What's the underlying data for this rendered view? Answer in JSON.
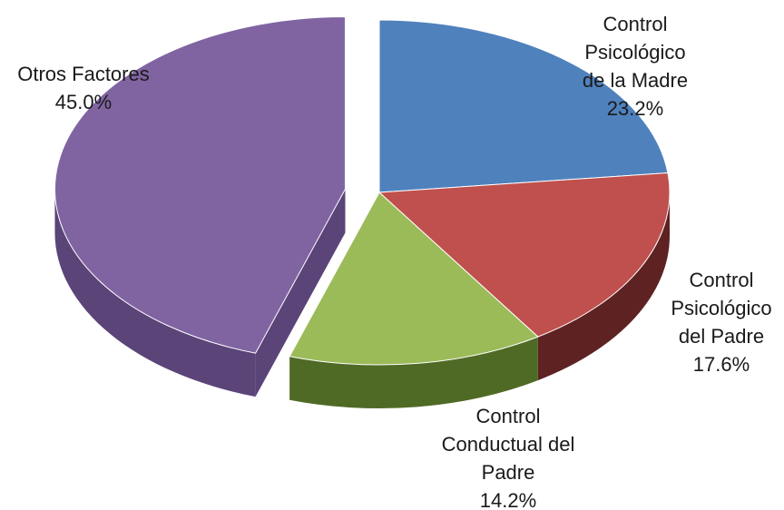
{
  "chart_data": {
    "type": "pie",
    "title": "",
    "legend": "none",
    "three_d": true,
    "exploded_slice": "Otros Factores",
    "slices": [
      {
        "name": "Control Psicológico de la Madre",
        "label_lines": [
          "Control",
          "Psicológico",
          "de la Madre"
        ],
        "value": 23.2,
        "value_label": "23.2%",
        "color": "#4F81BD",
        "color_side": "#2F4F7A"
      },
      {
        "name": "Control Psicológico del Padre",
        "label_lines": [
          "Control",
          "Psicológico",
          "del Padre"
        ],
        "value": 17.6,
        "value_label": "17.6%",
        "color": "#C0504D",
        "color_side": "#5E2222"
      },
      {
        "name": "Control Conductual del Padre",
        "label_lines": [
          "Control",
          "Conductual del",
          "Padre"
        ],
        "value": 14.2,
        "value_label": "14.2%",
        "color": "#9BBB59",
        "color_side": "#4F6A25"
      },
      {
        "name": "Otros Factores",
        "label_lines": [
          "Otros Factores"
        ],
        "value": 45.0,
        "value_label": "45.0%",
        "color": "#8064A2",
        "color_side": "#5B4478"
      }
    ]
  }
}
